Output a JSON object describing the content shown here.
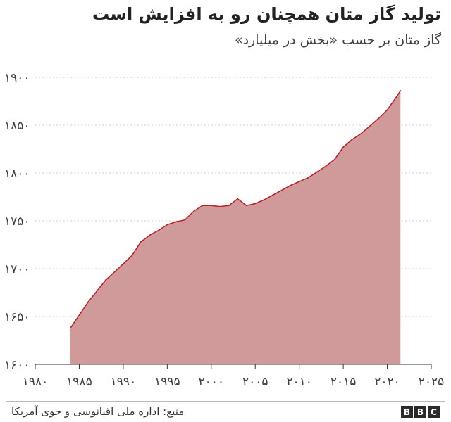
{
  "title": "تولید گاز متان همچنان رو به افزایش است",
  "subtitle": "گاز متان بر حسب «بخش در میلیارد»",
  "source": "منبع:  اداره ملی اقیانوسی و جوی آمریکا",
  "logo": [
    "B",
    "B",
    "C"
  ],
  "colors": {
    "fill": "#d09a9a",
    "line": "#b91d24",
    "text": "#404040",
    "grid": "#cccccc"
  },
  "chart_data": {
    "type": "area",
    "title": "تولید گاز متان همچنان رو به افزایش است",
    "ylabel": "گاز متان بر حسب «بخش در میلیارد»",
    "xlim": [
      1980,
      2025
    ],
    "ylim": [
      1600,
      1900
    ],
    "x_ticks": [
      1980,
      1985,
      1990,
      1995,
      2000,
      2005,
      2010,
      2015,
      2020,
      2025
    ],
    "x_tick_labels": [
      "۱۹۸۰",
      "۱۹۸۵",
      "۱۹۹۰",
      "۱۹۹۵",
      "۲۰۰۰",
      "۲۰۰۵",
      "۲۰۱۰",
      "۲۰۱۵",
      "۲۰۲۰",
      "۲۰۲۵"
    ],
    "y_ticks": [
      1600,
      1650,
      1700,
      1750,
      1800,
      1850,
      1900
    ],
    "y_tick_labels": [
      "۱۶۰۰",
      "۱۶۵۰",
      "۱۷۰۰",
      "۱۷۵۰",
      "۱۸۰۰",
      "۱۸۵۰",
      "۱۹۰۰"
    ],
    "grid": "horizontal-dotted",
    "x": [
      1984,
      1986,
      1988,
      1990,
      1991,
      1992,
      1993,
      1994,
      1995,
      1996,
      1997,
      1998,
      1999,
      2000,
      2001,
      2002,
      2003,
      2004,
      2005,
      2006,
      2007,
      2008,
      2009,
      2010,
      2011,
      2012,
      2013,
      2014,
      2015,
      2016,
      2017,
      2018,
      2019,
      2020,
      2021,
      2021.5
    ],
    "values": [
      1638,
      1665,
      1688,
      1705,
      1714,
      1728,
      1735,
      1740,
      1746,
      1749,
      1751,
      1760,
      1766,
      1766,
      1765,
      1766,
      1773,
      1766,
      1768,
      1772,
      1777,
      1782,
      1787,
      1791,
      1795,
      1801,
      1807,
      1814,
      1827,
      1835,
      1841,
      1849,
      1857,
      1866,
      1879,
      1886
    ]
  }
}
